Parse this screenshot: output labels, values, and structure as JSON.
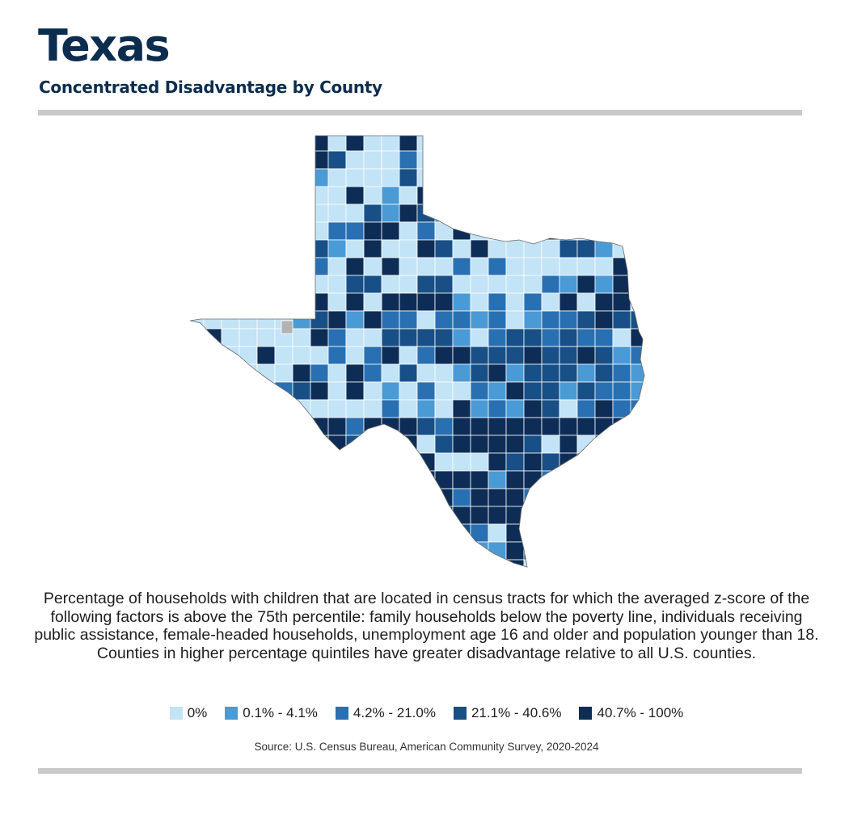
{
  "header": {
    "title": "Texas",
    "subtitle": "Concentrated Disadvantage by County"
  },
  "map": {
    "region": "Texas",
    "unit": "county",
    "no_data_color": "#b3b3b3",
    "border_color": "#ffffff"
  },
  "description": "Percentage of households with children that are located in census tracts for which the averaged z-score of the following factors is above the 75th percentile: family households below the poverty line, individuals receiving public assistance, female-headed households, unemployment age 16 and older and population younger than 18. Counties in higher percentage quintiles have greater disadvantage relative to all U.S. counties.",
  "legend": {
    "items": [
      {
        "label": "0%",
        "color": "#c3e3f6"
      },
      {
        "label": "0.1% - 4.1%",
        "color": "#4a9ad5"
      },
      {
        "label": "4.2% - 21.0%",
        "color": "#2870b2"
      },
      {
        "label": "21.1% - 40.6%",
        "color": "#174f86"
      },
      {
        "label": "40.7% - 100%",
        "color": "#0d2d57"
      }
    ]
  },
  "source": "Source: U.S. Census Bureau, American Community Survey, 2020-2024"
}
